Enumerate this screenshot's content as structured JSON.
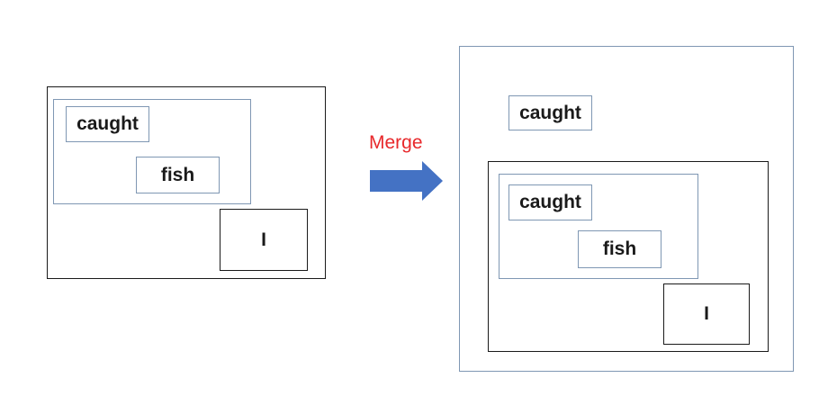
{
  "before": {
    "words": {
      "caught": "caught",
      "fish": "fish",
      "i": "I"
    }
  },
  "transition": {
    "label": "Merge",
    "label_color": "#e8282b",
    "arrow_color": "#4472c4"
  },
  "after": {
    "outer_word": "caught",
    "words": {
      "caught": "caught",
      "fish": "fish",
      "i": "I"
    }
  },
  "colors": {
    "dark_border": "#1a1a1a",
    "blue_border": "#7f97b3"
  }
}
